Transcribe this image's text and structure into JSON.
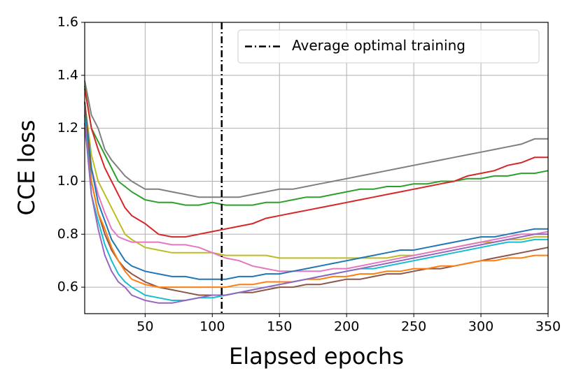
{
  "chart_data": {
    "type": "line",
    "xlabel": "Elapsed epochs",
    "ylabel": "CCE loss",
    "x": [
      5,
      10,
      15,
      20,
      25,
      30,
      35,
      40,
      50,
      60,
      70,
      80,
      90,
      100,
      110,
      120,
      130,
      140,
      150,
      160,
      170,
      180,
      190,
      200,
      210,
      220,
      230,
      240,
      250,
      260,
      270,
      280,
      290,
      300,
      310,
      320,
      330,
      340,
      350
    ],
    "series": [
      {
        "color": "#7f7f7f",
        "values": [
          1.38,
          1.25,
          1.2,
          1.12,
          1.08,
          1.05,
          1.02,
          1.0,
          0.97,
          0.97,
          0.96,
          0.95,
          0.94,
          0.94,
          0.94,
          0.94,
          0.95,
          0.96,
          0.97,
          0.97,
          0.98,
          0.99,
          1.0,
          1.01,
          1.02,
          1.03,
          1.04,
          1.05,
          1.06,
          1.07,
          1.08,
          1.09,
          1.1,
          1.11,
          1.12,
          1.13,
          1.14,
          1.16,
          1.16
        ]
      },
      {
        "color": "#2ca02c",
        "values": [
          1.36,
          1.2,
          1.15,
          1.1,
          1.05,
          1.0,
          0.98,
          0.96,
          0.93,
          0.92,
          0.92,
          0.91,
          0.91,
          0.92,
          0.91,
          0.91,
          0.91,
          0.92,
          0.92,
          0.93,
          0.94,
          0.94,
          0.95,
          0.96,
          0.97,
          0.97,
          0.98,
          0.98,
          0.99,
          0.99,
          1.0,
          1.0,
          1.01,
          1.01,
          1.02,
          1.02,
          1.03,
          1.03,
          1.04
        ]
      },
      {
        "color": "#d62728",
        "values": [
          1.35,
          1.2,
          1.12,
          1.05,
          1.0,
          0.95,
          0.9,
          0.87,
          0.84,
          0.8,
          0.79,
          0.79,
          0.8,
          0.81,
          0.82,
          0.83,
          0.84,
          0.86,
          0.87,
          0.88,
          0.89,
          0.9,
          0.91,
          0.92,
          0.93,
          0.94,
          0.95,
          0.96,
          0.97,
          0.98,
          0.99,
          1.0,
          1.02,
          1.03,
          1.04,
          1.06,
          1.07,
          1.09,
          1.09
        ]
      },
      {
        "color": "#bcbd22",
        "values": [
          1.3,
          1.1,
          1.0,
          0.95,
          0.9,
          0.85,
          0.8,
          0.78,
          0.75,
          0.74,
          0.73,
          0.73,
          0.73,
          0.73,
          0.72,
          0.72,
          0.72,
          0.72,
          0.71,
          0.71,
          0.71,
          0.71,
          0.71,
          0.71,
          0.71,
          0.71,
          0.71,
          0.72,
          0.72,
          0.73,
          0.74,
          0.75,
          0.76,
          0.77,
          0.77,
          0.78,
          0.78,
          0.79,
          0.79
        ]
      },
      {
        "color": "#e377c2",
        "values": [
          1.3,
          1.05,
          0.95,
          0.88,
          0.82,
          0.79,
          0.78,
          0.77,
          0.77,
          0.77,
          0.76,
          0.76,
          0.75,
          0.73,
          0.71,
          0.7,
          0.68,
          0.67,
          0.66,
          0.66,
          0.66,
          0.66,
          0.67,
          0.67,
          0.68,
          0.69,
          0.7,
          0.71,
          0.72,
          0.73,
          0.74,
          0.75,
          0.76,
          0.77,
          0.78,
          0.79,
          0.8,
          0.8,
          0.81
        ]
      },
      {
        "color": "#1f77b4",
        "values": [
          1.3,
          1.05,
          0.92,
          0.85,
          0.78,
          0.74,
          0.7,
          0.68,
          0.66,
          0.65,
          0.64,
          0.64,
          0.63,
          0.63,
          0.63,
          0.64,
          0.64,
          0.65,
          0.65,
          0.66,
          0.67,
          0.68,
          0.69,
          0.7,
          0.71,
          0.72,
          0.73,
          0.74,
          0.74,
          0.75,
          0.76,
          0.77,
          0.78,
          0.79,
          0.79,
          0.8,
          0.81,
          0.82,
          0.82
        ]
      },
      {
        "color": "#8c564b",
        "values": [
          1.3,
          1.0,
          0.88,
          0.8,
          0.74,
          0.7,
          0.67,
          0.65,
          0.62,
          0.6,
          0.59,
          0.58,
          0.57,
          0.57,
          0.57,
          0.58,
          0.58,
          0.59,
          0.6,
          0.6,
          0.61,
          0.61,
          0.62,
          0.63,
          0.63,
          0.64,
          0.65,
          0.65,
          0.66,
          0.67,
          0.67,
          0.68,
          0.69,
          0.7,
          0.71,
          0.72,
          0.73,
          0.74,
          0.75
        ]
      },
      {
        "color": "#ff7f0e",
        "values": [
          1.2,
          1.0,
          0.88,
          0.82,
          0.75,
          0.7,
          0.66,
          0.63,
          0.61,
          0.6,
          0.6,
          0.6,
          0.6,
          0.6,
          0.6,
          0.61,
          0.61,
          0.62,
          0.62,
          0.62,
          0.63,
          0.63,
          0.64,
          0.64,
          0.65,
          0.65,
          0.66,
          0.66,
          0.67,
          0.67,
          0.68,
          0.68,
          0.69,
          0.7,
          0.7,
          0.71,
          0.71,
          0.72,
          0.72
        ]
      },
      {
        "color": "#17becf",
        "values": [
          1.25,
          0.95,
          0.85,
          0.76,
          0.7,
          0.65,
          0.62,
          0.6,
          0.57,
          0.56,
          0.55,
          0.55,
          0.56,
          0.56,
          0.57,
          0.58,
          0.59,
          0.6,
          0.61,
          0.62,
          0.63,
          0.64,
          0.65,
          0.66,
          0.67,
          0.67,
          0.68,
          0.69,
          0.7,
          0.71,
          0.72,
          0.73,
          0.74,
          0.75,
          0.76,
          0.77,
          0.77,
          0.78,
          0.78
        ]
      },
      {
        "color": "#9467bd",
        "values": [
          1.22,
          0.95,
          0.82,
          0.72,
          0.66,
          0.62,
          0.6,
          0.57,
          0.55,
          0.54,
          0.54,
          0.55,
          0.56,
          0.57,
          0.57,
          0.58,
          0.59,
          0.6,
          0.61,
          0.62,
          0.63,
          0.64,
          0.65,
          0.66,
          0.67,
          0.68,
          0.69,
          0.7,
          0.71,
          0.72,
          0.73,
          0.74,
          0.75,
          0.76,
          0.77,
          0.78,
          0.79,
          0.8,
          0.8
        ]
      }
    ],
    "vline": {
      "x": 107,
      "label": "Average optimal training",
      "color": "#000000",
      "style": "dashdot"
    },
    "legend": "upper right",
    "xlim": [
      5,
      350
    ],
    "xticks": [
      50,
      100,
      150,
      200,
      250,
      300,
      350
    ],
    "ylim": [
      0.5,
      1.6
    ],
    "yticks": [
      0.6,
      0.8,
      {
        "value": 1,
        "label": "1.0"
      },
      1.2,
      1.4,
      1.6
    ],
    "grid": true
  }
}
